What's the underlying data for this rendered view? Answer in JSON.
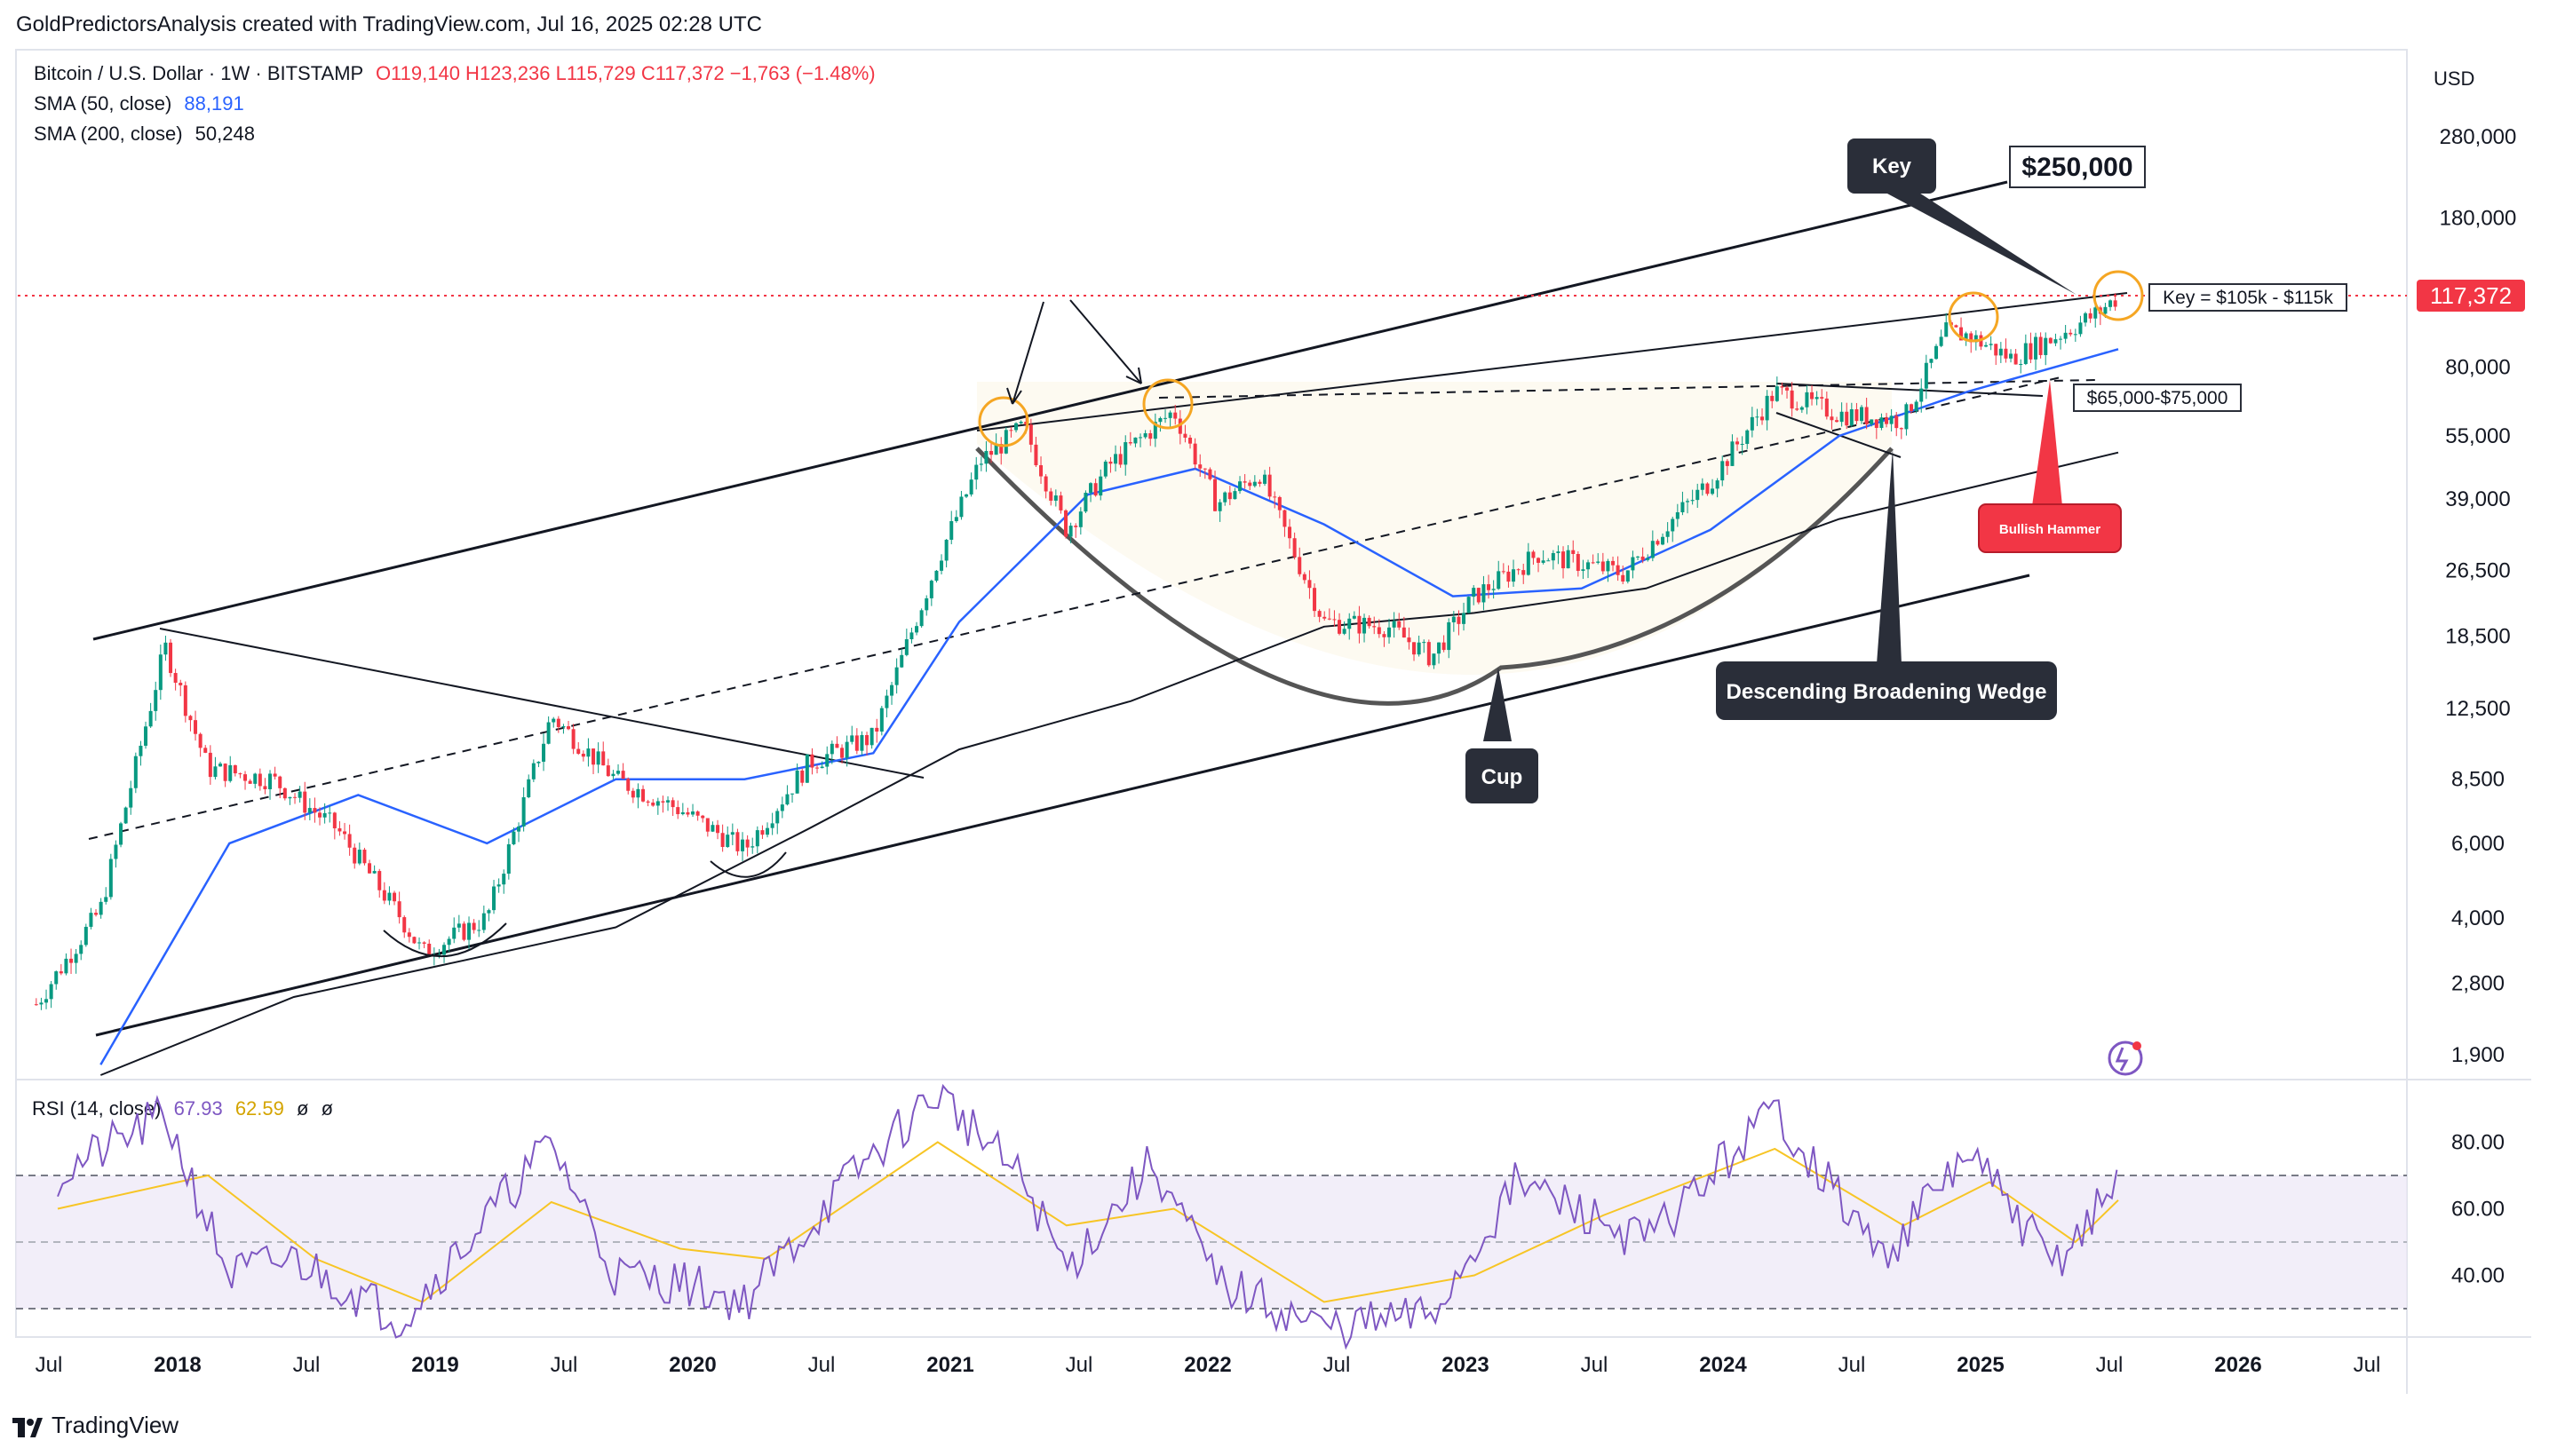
{
  "header": {
    "attribution": "GoldPredictorsAnalysis created with TradingView.com, Jul 16, 2025 02:28 UTC"
  },
  "legend": {
    "symbol": "Bitcoin / U.S. Dollar · 1W · BITSTAMP",
    "ohlc": "O119,140  H123,236  L115,729  C117,372  −1,763 (−1.48%)",
    "sma50_label": "SMA (50, close)",
    "sma50_value": "88,191",
    "sma200_label": "SMA (200, close)",
    "sma200_value": "50,248",
    "rsi_label": "RSI (14, close)",
    "rsi_value": "67.93",
    "rsi_ma_value": "62.59",
    "rsi_extra_1": "ø",
    "rsi_extra_2": "ø"
  },
  "footer": {
    "brand": "TradingView"
  },
  "colors": {
    "up": "#089981",
    "down": "#f23645",
    "sma50": "#2962ff",
    "sma200": "#131722",
    "rsi": "#7e57c2",
    "rsi_ma": "#f7c525",
    "price_badge": "#f23645",
    "annotation_dark": "#2a2e39",
    "hammer": "#f23645",
    "halo": "#f5a623"
  },
  "chart_data": [
    {
      "type": "candlestick",
      "title": "Bitcoin / U.S. Dollar · 1W · BITSTAMP",
      "y_axis": {
        "scale": "log",
        "currency": "USD",
        "tick_labels": [
          "280,000",
          "180,000",
          "117,372",
          "80,000",
          "55,000",
          "39,000",
          "26,500",
          "18,500",
          "12,500",
          "8,500",
          "6,000",
          "4,000",
          "2,800",
          "1,900"
        ]
      },
      "x_axis": {
        "tick_labels": [
          "Jul",
          "2018",
          "Jul",
          "2019",
          "Jul",
          "2020",
          "Jul",
          "2021",
          "Jul",
          "2022",
          "Jul",
          "2023",
          "Jul",
          "2024",
          "Jul",
          "2025",
          "Jul",
          "2026",
          "Jul"
        ],
        "range": [
          "2017-07",
          "2026-07"
        ]
      },
      "last_price": 117372,
      "series": [
        {
          "name": "BTCUSD",
          "points": [
            [
              "2017-06",
              2500
            ],
            [
              "2017-09",
              4200
            ],
            [
              "2017-12",
              17500
            ],
            [
              "2018-02",
              9000
            ],
            [
              "2018-05",
              8500
            ],
            [
              "2018-08",
              6500
            ],
            [
              "2018-11",
              4000
            ],
            [
              "2018-12",
              3300
            ],
            [
              "2019-03",
              4000
            ],
            [
              "2019-06",
              12000
            ],
            [
              "2019-09",
              8500
            ],
            [
              "2019-12",
              7200
            ],
            [
              "2020-03",
              5800
            ],
            [
              "2020-06",
              9300
            ],
            [
              "2020-09",
              10700
            ],
            [
              "2020-12",
              28000
            ],
            [
              "2021-02",
              48000
            ],
            [
              "2021-04",
              58000
            ],
            [
              "2021-06",
              33000
            ],
            [
              "2021-08",
              47000
            ],
            [
              "2021-11",
              63000
            ],
            [
              "2022-01",
              38000
            ],
            [
              "2022-03",
              45000
            ],
            [
              "2022-06",
              20000
            ],
            [
              "2022-09",
              19500
            ],
            [
              "2022-11",
              16500
            ],
            [
              "2023-01",
              23000
            ],
            [
              "2023-04",
              29000
            ],
            [
              "2023-08",
              26000
            ],
            [
              "2023-10",
              34000
            ],
            [
              "2023-12",
              43000
            ],
            [
              "2024-03",
              70000
            ],
            [
              "2024-06",
              62000
            ],
            [
              "2024-09",
              60000
            ],
            [
              "2024-11",
              97000
            ],
            [
              "2024-12",
              95000
            ],
            [
              "2025-02",
              84000
            ],
            [
              "2025-04",
              94000
            ],
            [
              "2025-06",
              107000
            ],
            [
              "2025-07",
              117372
            ]
          ]
        },
        {
          "name": "SMA (50, close)",
          "points": [
            [
              "2017-09",
              1800
            ],
            [
              "2018-03",
              6000
            ],
            [
              "2018-09",
              7800
            ],
            [
              "2019-03",
              6000
            ],
            [
              "2019-09",
              8500
            ],
            [
              "2020-03",
              8500
            ],
            [
              "2020-09",
              9800
            ],
            [
              "2021-01",
              20000
            ],
            [
              "2021-07",
              40000
            ],
            [
              "2021-12",
              46000
            ],
            [
              "2022-06",
              34000
            ],
            [
              "2022-12",
              23000
            ],
            [
              "2023-06",
              24000
            ],
            [
              "2023-12",
              33000
            ],
            [
              "2024-06",
              55000
            ],
            [
              "2024-12",
              70000
            ],
            [
              "2025-07",
              88191
            ]
          ]
        },
        {
          "name": "SMA (200, close)",
          "points": [
            [
              "2017-09",
              1700
            ],
            [
              "2018-06",
              2600
            ],
            [
              "2019-01",
              3100
            ],
            [
              "2019-09",
              3800
            ],
            [
              "2020-06",
              6500
            ],
            [
              "2021-01",
              10000
            ],
            [
              "2021-09",
              13000
            ],
            [
              "2022-06",
              19500
            ],
            [
              "2023-01",
              21000
            ],
            [
              "2023-09",
              24000
            ],
            [
              "2024-06",
              35000
            ],
            [
              "2025-07",
              50248
            ]
          ]
        }
      ]
    },
    {
      "type": "line",
      "title": "RSI (14, close)",
      "y_axis": {
        "tick_labels": [
          "80.00",
          "60.00",
          "40.00"
        ],
        "bands": [
          70,
          50,
          30
        ]
      },
      "series": [
        {
          "name": "RSI",
          "points": [
            [
              "2017-07",
              70
            ],
            [
              "2017-12",
              88
            ],
            [
              "2018-03",
              40
            ],
            [
              "2018-06",
              45
            ],
            [
              "2018-11",
              27
            ],
            [
              "2019-06",
              80
            ],
            [
              "2019-09",
              40
            ],
            [
              "2019-12",
              38
            ],
            [
              "2020-03",
              32
            ],
            [
              "2020-08",
              70
            ],
            [
              "2020-12",
              95
            ],
            [
              "2021-04",
              68
            ],
            [
              "2021-06",
              42
            ],
            [
              "2021-10",
              74
            ],
            [
              "2022-01",
              38
            ],
            [
              "2022-06",
              24
            ],
            [
              "2022-11",
              28
            ],
            [
              "2023-03",
              68
            ],
            [
              "2023-09",
              50
            ],
            [
              "2024-03",
              90
            ],
            [
              "2024-08",
              45
            ],
            [
              "2024-12",
              77
            ],
            [
              "2025-04",
              43
            ],
            [
              "2025-07",
              67.93
            ]
          ]
        },
        {
          "name": "RSI MA",
          "points": [
            [
              "2017-07",
              60
            ],
            [
              "2018-02",
              70
            ],
            [
              "2018-07",
              45
            ],
            [
              "2018-12",
              32
            ],
            [
              "2019-06",
              62
            ],
            [
              "2019-12",
              48
            ],
            [
              "2020-04",
              45
            ],
            [
              "2020-12",
              80
            ],
            [
              "2021-06",
              55
            ],
            [
              "2021-11",
              60
            ],
            [
              "2022-06",
              32
            ],
            [
              "2023-01",
              40
            ],
            [
              "2023-07",
              58
            ],
            [
              "2024-03",
              78
            ],
            [
              "2024-09",
              55
            ],
            [
              "2025-01",
              68
            ],
            [
              "2025-05",
              50
            ],
            [
              "2025-07",
              62.59
            ]
          ]
        }
      ]
    }
  ],
  "annotations": {
    "key_label": "Key",
    "target_label": "$250,000",
    "key_zone_label": "Key = $105k - $115k",
    "support_zone_label": "$65,000-$75,000",
    "hammer_label": "Bullish Hammer",
    "wedge_label": "Descending Broadening Wedge",
    "cup_label": "Cup"
  }
}
